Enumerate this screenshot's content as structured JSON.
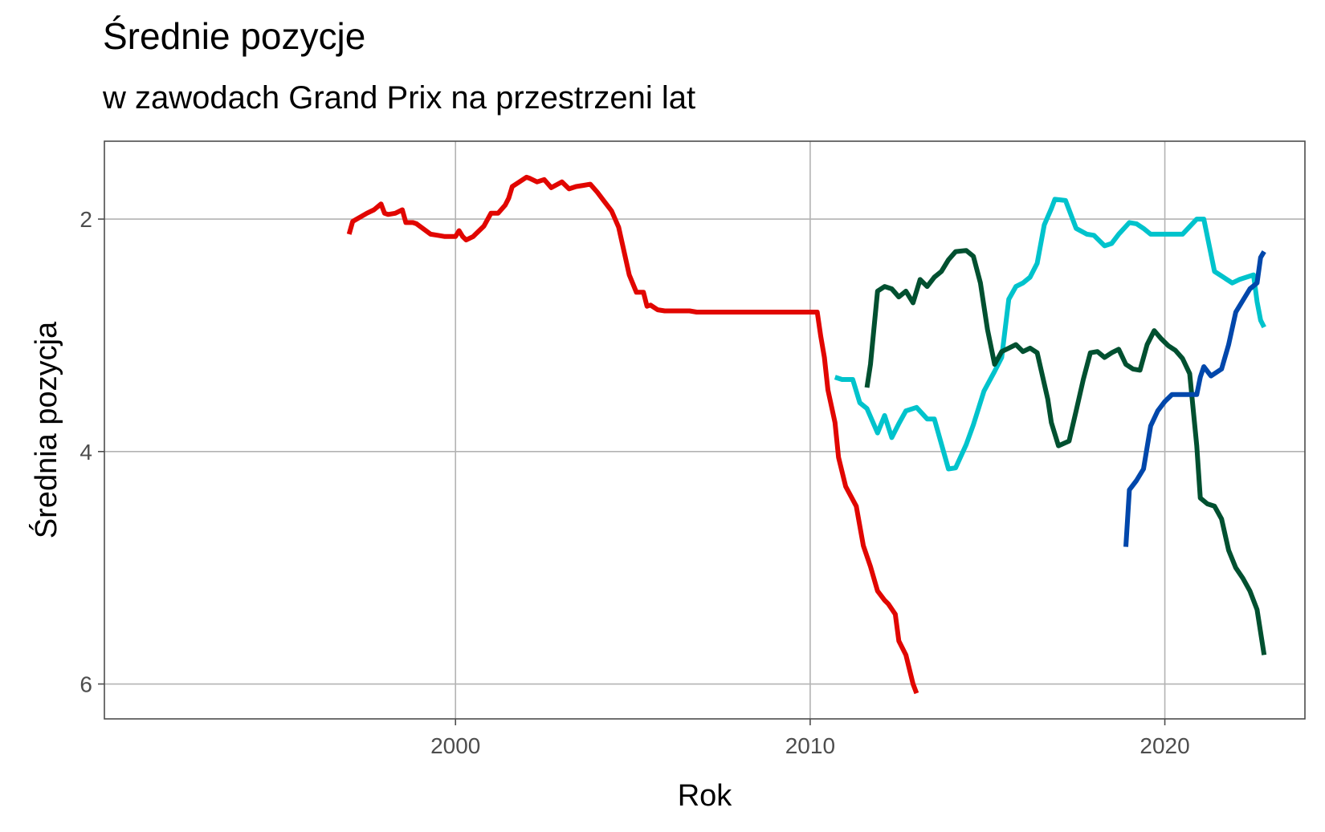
{
  "chart_data": {
    "type": "line",
    "title": "Średnie pozycje",
    "subtitle": "w zawodach Grand Prix na przestrzeni lat",
    "xlabel": "Rok",
    "ylabel": "Średnia pozycja",
    "xlim": [
      1990.1,
      2023.95
    ],
    "ylim": [
      1.33,
      6.3
    ],
    "y_reversed": true,
    "x_ticks": [
      2000,
      2010,
      2020
    ],
    "y_ticks": [
      2,
      4,
      6
    ],
    "grid": true,
    "legend": "none",
    "series": [
      {
        "color": "#e10600",
        "x": [
          1997.0,
          1997.1,
          1997.5,
          1997.7,
          1997.9,
          1998.0,
          1998.1,
          1998.3,
          1998.5,
          1998.6,
          1998.8,
          1998.9,
          1999.3,
          1999.5,
          1999.7,
          2000.0,
          2000.1,
          2000.2,
          2000.3,
          2000.5,
          2000.6,
          2000.7,
          2000.8,
          2001.0,
          2001.2,
          2001.4,
          2001.5,
          2001.6,
          2001.8,
          2002.0,
          2002.1,
          2002.3,
          2002.5,
          2002.7,
          2003.0,
          2003.2,
          2003.4,
          2003.6,
          2003.8,
          2004.0,
          2004.2,
          2004.4,
          2004.6,
          2004.9,
          2005.1,
          2005.3,
          2005.4,
          2005.5,
          2005.7,
          2005.9,
          2006.2,
          2006.4,
          2006.6,
          2006.8,
          2007.0,
          2010.2,
          2010.3,
          2010.4,
          2010.5,
          2010.7,
          2010.8,
          2011.0,
          2011.3,
          2011.5,
          2011.7,
          2011.9,
          2012.1,
          2012.2,
          2012.4,
          2012.5,
          2012.7,
          2012.9,
          2013.0
        ],
        "y": [
          2.13,
          2.02,
          1.95,
          1.92,
          1.87,
          1.95,
          1.96,
          1.95,
          1.92,
          2.03,
          2.03,
          2.04,
          2.13,
          2.14,
          2.15,
          2.15,
          2.1,
          2.15,
          2.18,
          2.15,
          2.12,
          2.09,
          2.06,
          1.95,
          1.95,
          1.88,
          1.82,
          1.72,
          1.68,
          1.64,
          1.65,
          1.68,
          1.66,
          1.73,
          1.68,
          1.74,
          1.72,
          1.71,
          1.7,
          1.77,
          1.85,
          1.93,
          2.07,
          2.48,
          2.63,
          2.63,
          2.75,
          2.74,
          2.78,
          2.79,
          2.79,
          2.79,
          2.79,
          2.8,
          2.8,
          2.8,
          3.01,
          3.19,
          3.47,
          3.75,
          4.05,
          4.3,
          4.47,
          4.81,
          4.99,
          5.2,
          5.28,
          5.31,
          5.4,
          5.63,
          5.75,
          6.0,
          6.08
        ]
      },
      {
        "color": "#00c3cc",
        "x": [
          2010.7,
          2010.9,
          2011.2,
          2011.4,
          2011.6,
          2011.9,
          2012.1,
          2012.3,
          2012.5,
          2012.7,
          2013.0,
          2013.3,
          2013.5,
          2013.9,
          2014.1,
          2014.4,
          2014.6,
          2014.9,
          2015.2,
          2015.4,
          2015.6,
          2015.8,
          2016.0,
          2016.2,
          2016.4,
          2016.6,
          2016.8,
          2016.9,
          2017.2,
          2017.5,
          2017.8,
          2018.0,
          2018.3,
          2018.5,
          2018.7,
          2019.0,
          2019.2,
          2019.4,
          2019.6,
          2019.8,
          2020.0,
          2020.5,
          2020.9,
          2021.1,
          2021.4,
          2021.7,
          2021.9,
          2022.1,
          2022.3,
          2022.5,
          2022.6,
          2022.7,
          2022.8
        ],
        "y": [
          3.36,
          3.38,
          3.38,
          3.58,
          3.63,
          3.84,
          3.69,
          3.88,
          3.76,
          3.65,
          3.62,
          3.72,
          3.72,
          4.15,
          4.14,
          3.94,
          3.77,
          3.48,
          3.31,
          3.19,
          2.69,
          2.58,
          2.55,
          2.5,
          2.38,
          2.05,
          1.91,
          1.83,
          1.84,
          2.08,
          2.13,
          2.14,
          2.23,
          2.21,
          2.13,
          2.03,
          2.04,
          2.08,
          2.13,
          2.13,
          2.13,
          2.13,
          2.0,
          2.0,
          2.45,
          2.51,
          2.55,
          2.52,
          2.5,
          2.48,
          2.71,
          2.87,
          2.93
        ]
      },
      {
        "color": "#005030",
        "x": [
          2011.6,
          2011.7,
          2011.9,
          2012.1,
          2012.3,
          2012.5,
          2012.7,
          2012.9,
          2013.1,
          2013.3,
          2013.5,
          2013.7,
          2013.9,
          2014.1,
          2014.4,
          2014.6,
          2014.8,
          2015.0,
          2015.2,
          2015.4,
          2015.6,
          2015.8,
          2016.0,
          2016.2,
          2016.4,
          2016.7,
          2016.8,
          2017.0,
          2017.3,
          2017.5,
          2017.7,
          2017.9,
          2018.1,
          2018.3,
          2018.5,
          2018.7,
          2018.9,
          2019.1,
          2019.3,
          2019.5,
          2019.7,
          2019.9,
          2020.1,
          2020.3,
          2020.5,
          2020.7,
          2020.9,
          2021.0,
          2021.2,
          2021.4,
          2021.6,
          2021.8,
          2022.0,
          2022.2,
          2022.4,
          2022.6,
          2022.8
        ],
        "y": [
          3.45,
          3.25,
          2.62,
          2.58,
          2.6,
          2.67,
          2.62,
          2.72,
          2.52,
          2.58,
          2.5,
          2.45,
          2.35,
          2.28,
          2.27,
          2.32,
          2.55,
          2.95,
          3.25,
          3.14,
          3.11,
          3.08,
          3.14,
          3.11,
          3.15,
          3.55,
          3.75,
          3.95,
          3.91,
          3.65,
          3.38,
          3.15,
          3.14,
          3.19,
          3.15,
          3.12,
          3.25,
          3.29,
          3.3,
          3.08,
          2.96,
          3.03,
          3.09,
          3.13,
          3.2,
          3.33,
          3.95,
          4.4,
          4.45,
          4.47,
          4.58,
          4.85,
          5.0,
          5.09,
          5.2,
          5.36,
          5.75
        ]
      },
      {
        "color": "#0047ab",
        "x": [
          2018.9,
          2019.0,
          2019.2,
          2019.4,
          2019.6,
          2019.8,
          2020.0,
          2020.2,
          2020.4,
          2020.5,
          2020.7,
          2020.9,
          2021.0,
          2021.1,
          2021.3,
          2021.6,
          2021.8,
          2022.0,
          2022.2,
          2022.4,
          2022.6,
          2022.7,
          2022.8
        ],
        "y": [
          4.82,
          4.33,
          4.25,
          4.15,
          3.78,
          3.65,
          3.57,
          3.51,
          3.51,
          3.51,
          3.51,
          3.51,
          3.36,
          3.27,
          3.35,
          3.29,
          3.08,
          2.8,
          2.7,
          2.6,
          2.55,
          2.33,
          2.28
        ]
      }
    ]
  }
}
